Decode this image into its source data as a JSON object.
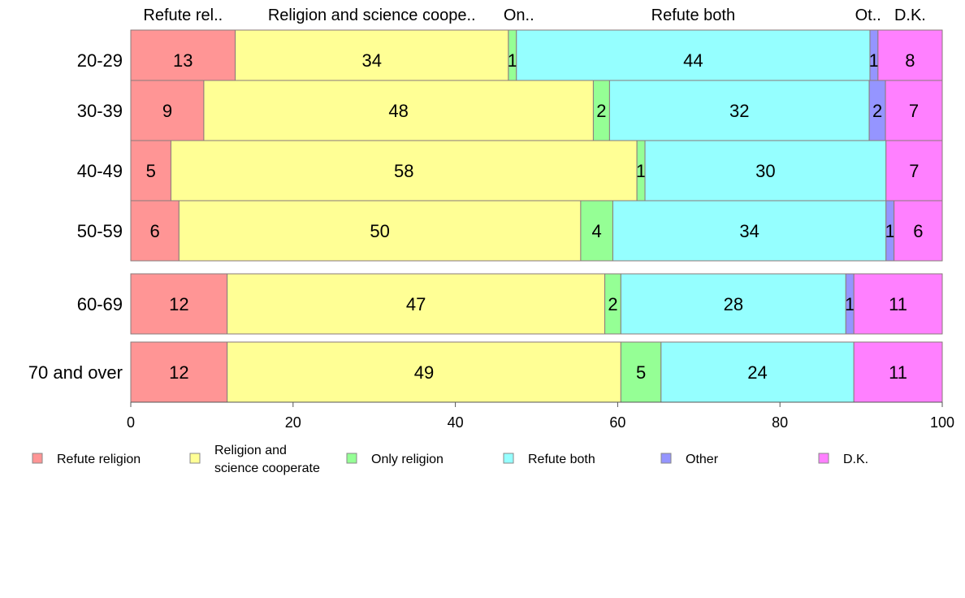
{
  "chart_data": {
    "type": "bar",
    "orientation": "horizontal",
    "stacked": true,
    "categories": [
      "20-29",
      "30-39",
      "40-49",
      "50-59",
      "60-69",
      "70 and over"
    ],
    "series": [
      {
        "name": "Refute religion",
        "top_label": "Refute rel..",
        "color": "#ff9595",
        "values": [
          13,
          9,
          5,
          6,
          12,
          12
        ]
      },
      {
        "name": "Religion and science cooperate",
        "legend_lines": [
          "Religion and",
          "science cooperate"
        ],
        "top_label": "Religion and science coope..",
        "color": "#ffff95",
        "values": [
          34,
          48,
          58,
          50,
          47,
          49
        ]
      },
      {
        "name": "Only religion",
        "top_label": "On..",
        "color": "#95ff95",
        "values": [
          1,
          2,
          1,
          4,
          2,
          5
        ]
      },
      {
        "name": "Refute both",
        "top_label": "Refute both",
        "color": "#95ffff",
        "values": [
          44,
          32,
          30,
          34,
          28,
          24
        ]
      },
      {
        "name": "Other",
        "top_label": "Ot..",
        "color": "#9595ff",
        "values": [
          1,
          2,
          0,
          1,
          1,
          0
        ]
      },
      {
        "name": "D.K.",
        "top_label": "D.K.",
        "color": "#ff80ff",
        "values": [
          8,
          7,
          7,
          6,
          11,
          11
        ]
      }
    ],
    "data_labels": [
      [
        "13",
        "34",
        "1",
        "44",
        "1",
        "8"
      ],
      [
        "9",
        "48",
        "2",
        "32",
        "2",
        "7"
      ],
      [
        "5",
        "58",
        "1",
        "30",
        "",
        "7"
      ],
      [
        "6",
        "50",
        "4",
        "34",
        "1",
        "6"
      ],
      [
        "12",
        "47",
        "2",
        "28",
        "1",
        "11"
      ],
      [
        "12",
        "49",
        "5",
        "24",
        "",
        "11"
      ]
    ],
    "xlim": [
      0,
      100
    ],
    "xticks": [
      "0",
      "20",
      "40",
      "60",
      "80",
      "100"
    ],
    "grid": false,
    "legend_position": "bottom"
  }
}
